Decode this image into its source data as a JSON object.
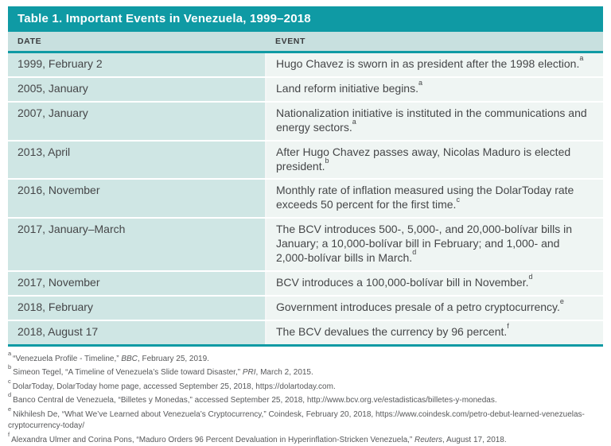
{
  "table": {
    "title": "Table 1. Important Events in Venezuela, 1999–2018",
    "columns": [
      "DATE",
      "EVENT"
    ],
    "rows": [
      {
        "date": "1999, February 2",
        "event": "Hugo Chavez is sworn in as president after the 1998 election.",
        "note": "a"
      },
      {
        "date": "2005, January",
        "event": "Land reform initiative begins.",
        "note": "a"
      },
      {
        "date": "2007, January",
        "event": "Nationalization initiative is instituted in the communications and energy sectors.",
        "note": "a"
      },
      {
        "date": "2013, April",
        "event": "After Hugo Chavez passes away, Nicolas Maduro is elected president.",
        "note": "b"
      },
      {
        "date": "2016, November",
        "event": "Monthly rate of inflation measured using the DolarToday rate exceeds 50 percent for the first time.",
        "note": "c"
      },
      {
        "date": "2017, January–March",
        "event": "The BCV introduces 500-, 5,000-, and 20,000-bolívar bills in January; a 10,000-bolívar bill in February; and 1,000- and 2,000-bolívar bills in March.",
        "note": "d"
      },
      {
        "date": "2017, November",
        "event": "BCV introduces a 100,000-bolívar bill in November.",
        "note": "d"
      },
      {
        "date": "2018, February",
        "event": "Government introduces presale of a petro cryptocurrency.",
        "note": "e"
      },
      {
        "date": "2018, August 17",
        "event": "The BCV devalues the currency by 96 percent.",
        "note": "f"
      }
    ]
  },
  "footnotes": [
    {
      "marker": "a",
      "segments": [
        {
          "text": "“Venezuela Profile - Timeline,” "
        },
        {
          "text": "BBC",
          "italic": true
        },
        {
          "text": ", February 25, 2019."
        }
      ]
    },
    {
      "marker": "b",
      "segments": [
        {
          "text": "Simeon Tegel, “A Timeline of Venezuela’s Slide toward Disaster,” "
        },
        {
          "text": "PRI",
          "italic": true
        },
        {
          "text": ", March 2, 2015."
        }
      ]
    },
    {
      "marker": "c",
      "segments": [
        {
          "text": "DolarToday, DolarToday home page, accessed September 25, 2018, https://dolartoday.com."
        }
      ]
    },
    {
      "marker": "d",
      "segments": [
        {
          "text": "Banco Central de Venezuela, “Billetes y Monedas,” accessed September 25, 2018, http://www.bcv.org.ve/estadisticas/billetes-y-monedas."
        }
      ]
    },
    {
      "marker": "e",
      "segments": [
        {
          "text": "Nikhilesh De, “What We’ve Learned about Venezuela’s Cryptocurrency,” Coindesk, February 20, 2018, https://www.coindesk.com/petro-debut-learned-venezuelas-cryptocurrency-today/"
        }
      ]
    },
    {
      "marker": "f",
      "segments": [
        {
          "text": "Alexandra Ulmer and Corina Pons, “Maduro Orders 96 Percent Devaluation in Hyperinflation-Stricken Venezuela,” "
        },
        {
          "text": "Reuters",
          "italic": true
        },
        {
          "text": ", August 17, 2018."
        }
      ]
    }
  ],
  "colors": {
    "teal": "#0f9aa4",
    "header_bg": "#c8e0df",
    "date_cell_bg": "#cfe6e4",
    "event_cell_bg": "#eff5f3",
    "body_text": "#454648",
    "footnote_text": "#57585a"
  }
}
